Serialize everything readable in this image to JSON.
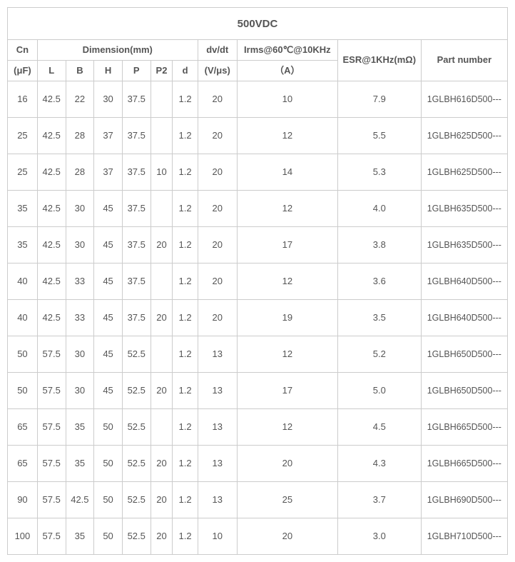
{
  "title": "500VDC",
  "columns": {
    "cn": {
      "l1": "Cn",
      "l2": "(μF)"
    },
    "dimension_group": "Dimension(mm)",
    "dim_sub": {
      "L": "L",
      "B": "B",
      "H": "H",
      "P": "P",
      "P2": "P2",
      "d": "d"
    },
    "dvdt": {
      "l1": "dv/dt",
      "l2": "(V/μs)"
    },
    "irms": {
      "l1": "Irms@60℃@10KHz",
      "l2": "（A）"
    },
    "esr": "ESR@1KHz(mΩ)",
    "part": "Part number"
  },
  "rows": [
    {
      "cn": "16",
      "L": "42.5",
      "B": "22",
      "H": "30",
      "P": "37.5",
      "P2": "",
      "d": "1.2",
      "dvdt": "20",
      "irms": "10",
      "esr": "7.9",
      "part": "1GLBH616D500---"
    },
    {
      "cn": "25",
      "L": "42.5",
      "B": "28",
      "H": "37",
      "P": "37.5",
      "P2": "",
      "d": "1.2",
      "dvdt": "20",
      "irms": "12",
      "esr": "5.5",
      "part": "1GLBH625D500---"
    },
    {
      "cn": "25",
      "L": "42.5",
      "B": "28",
      "H": "37",
      "P": "37.5",
      "P2": "10",
      "d": "1.2",
      "dvdt": "20",
      "irms": "14",
      "esr": "5.3",
      "part": "1GLBH625D500---"
    },
    {
      "cn": "35",
      "L": "42.5",
      "B": "30",
      "H": "45",
      "P": "37.5",
      "P2": "",
      "d": "1.2",
      "dvdt": "20",
      "irms": "12",
      "esr": "4.0",
      "part": "1GLBH635D500---"
    },
    {
      "cn": "35",
      "L": "42.5",
      "B": "30",
      "H": "45",
      "P": "37.5",
      "P2": "20",
      "d": "1.2",
      "dvdt": "20",
      "irms": "17",
      "esr": "3.8",
      "part": "1GLBH635D500---"
    },
    {
      "cn": "40",
      "L": "42.5",
      "B": "33",
      "H": "45",
      "P": "37.5",
      "P2": "",
      "d": "1.2",
      "dvdt": "20",
      "irms": "12",
      "esr": "3.6",
      "part": "1GLBH640D500---"
    },
    {
      "cn": "40",
      "L": "42.5",
      "B": "33",
      "H": "45",
      "P": "37.5",
      "P2": "20",
      "d": "1.2",
      "dvdt": "20",
      "irms": "19",
      "esr": "3.5",
      "part": "1GLBH640D500---"
    },
    {
      "cn": "50",
      "L": "57.5",
      "B": "30",
      "H": "45",
      "P": "52.5",
      "P2": "",
      "d": "1.2",
      "dvdt": "13",
      "irms": "12",
      "esr": "5.2",
      "part": "1GLBH650D500---"
    },
    {
      "cn": "50",
      "L": "57.5",
      "B": "30",
      "H": "45",
      "P": "52.5",
      "P2": "20",
      "d": "1.2",
      "dvdt": "13",
      "irms": "17",
      "esr": "5.0",
      "part": "1GLBH650D500---"
    },
    {
      "cn": "65",
      "L": "57.5",
      "B": "35",
      "H": "50",
      "P": "52.5",
      "P2": "",
      "d": "1.2",
      "dvdt": "13",
      "irms": "12",
      "esr": "4.5",
      "part": "1GLBH665D500---"
    },
    {
      "cn": "65",
      "L": "57.5",
      "B": "35",
      "H": "50",
      "P": "52.5",
      "P2": "20",
      "d": "1.2",
      "dvdt": "13",
      "irms": "20",
      "esr": "4.3",
      "part": "1GLBH665D500---"
    },
    {
      "cn": "90",
      "L": "57.5",
      "B": "42.5",
      "H": "50",
      "P": "52.5",
      "P2": "20",
      "d": "1.2",
      "dvdt": "13",
      "irms": "25",
      "esr": "3.7",
      "part": "1GLBH690D500---"
    },
    {
      "cn": "100",
      "L": "57.5",
      "B": "35",
      "H": "50",
      "P": "52.5",
      "P2": "20",
      "d": "1.2",
      "dvdt": "10",
      "irms": "20",
      "esr": "3.0",
      "part": "1GLBH710D500---"
    }
  ]
}
